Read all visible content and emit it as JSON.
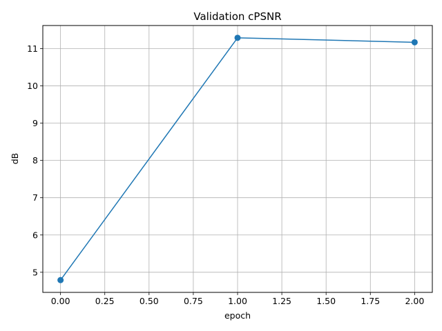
{
  "chart_data": {
    "type": "line",
    "title": "Validation cPSNR",
    "xlabel": "epoch",
    "ylabel": "dB",
    "x": [
      0,
      1,
      2
    ],
    "series": [
      {
        "values": [
          4.79,
          11.29,
          11.17
        ],
        "color": "#1f77b4",
        "marker": "circle"
      }
    ],
    "xlim": [
      -0.1,
      2.1
    ],
    "ylim": [
      4.46,
      11.62
    ],
    "xticks": [
      0,
      0.25,
      0.5,
      0.75,
      1,
      1.25,
      1.5,
      1.75,
      2
    ],
    "xtick_labels": [
      "0.00",
      "0.25",
      "0.50",
      "0.75",
      "1.00",
      "1.25",
      "1.50",
      "1.75",
      "2.00"
    ],
    "yticks": [
      5,
      6,
      7,
      8,
      9,
      10,
      11
    ],
    "ytick_labels": [
      "5",
      "6",
      "7",
      "8",
      "9",
      "10",
      "11"
    ],
    "grid": true,
    "legend": "none"
  }
}
